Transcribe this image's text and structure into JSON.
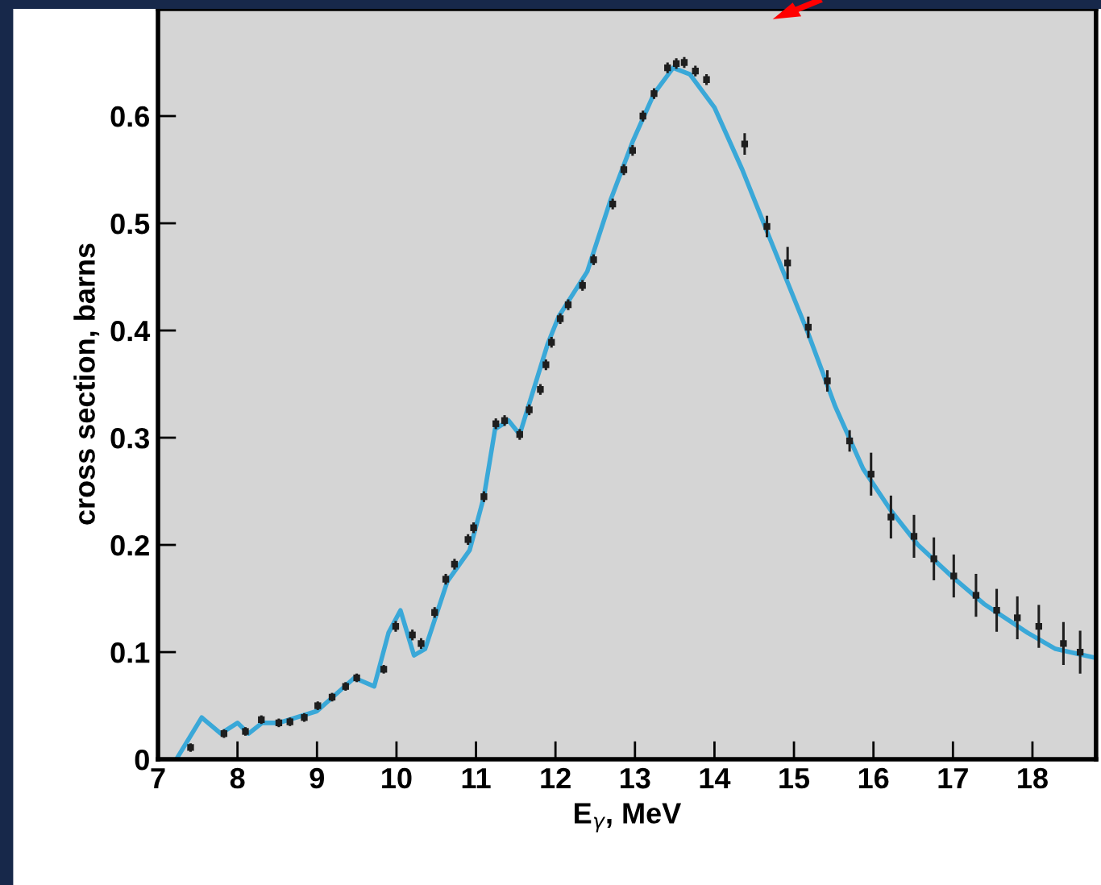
{
  "chart_data": {
    "type": "scatter",
    "xlabel": "E$_{γ}$, MeV",
    "ylabel": "cross section, barns",
    "xlim": [
      7,
      18.8
    ],
    "ylim": [
      0,
      0.7
    ],
    "xticks": [
      7,
      8,
      9,
      10,
      11,
      12,
      13,
      14,
      15,
      16,
      17,
      18
    ],
    "yticks": [
      0,
      0.1,
      0.2,
      0.3,
      0.4,
      0.5,
      0.6
    ],
    "grid": false,
    "legend": false,
    "series": [
      {
        "type": "line",
        "color": "#3aa8d8",
        "line_style": "solid",
        "marker": "none",
        "x": [
          7.23,
          7.55,
          7.79,
          8.0,
          8.14,
          8.31,
          8.52,
          9.0,
          9.47,
          9.72,
          9.9,
          10.05,
          10.22,
          10.36,
          10.64,
          10.92,
          11.1,
          11.24,
          11.41,
          11.55,
          11.9,
          12.04,
          12.4,
          12.69,
          12.97,
          13.24,
          13.48,
          13.69,
          14.0,
          14.35,
          14.69,
          15.18,
          15.52,
          15.87,
          16.22,
          16.56,
          16.98,
          17.39,
          17.94,
          18.29,
          18.77
        ],
        "values": [
          0,
          0.039,
          0.024,
          0.034,
          0.024,
          0.034,
          0.034,
          0.045,
          0.076,
          0.068,
          0.118,
          0.139,
          0.097,
          0.103,
          0.166,
          0.195,
          0.245,
          0.308,
          0.316,
          0.303,
          0.387,
          0.413,
          0.455,
          0.521,
          0.576,
          0.621,
          0.645,
          0.639,
          0.608,
          0.55,
          0.487,
          0.397,
          0.329,
          0.271,
          0.232,
          0.2,
          0.171,
          0.145,
          0.118,
          0.103,
          0.095
        ]
      },
      {
        "color": "#1e1e1e",
        "marker": "square",
        "x": [
          7.41,
          7.83,
          8.1,
          8.3,
          8.52,
          8.66,
          8.84,
          9.01,
          9.19,
          9.36,
          9.5,
          9.84,
          9.99,
          10.2,
          10.31,
          10.48,
          10.62,
          10.73,
          10.9,
          10.97,
          11.1,
          11.25,
          11.36,
          11.55,
          11.67,
          11.81,
          11.88,
          11.95,
          12.06,
          12.16,
          12.34,
          12.48,
          12.72,
          12.86,
          12.97,
          13.1,
          13.24,
          13.41,
          13.52,
          13.62,
          13.76,
          13.9,
          14.38,
          14.66,
          14.92,
          15.18,
          15.42,
          15.7,
          15.97,
          16.22,
          16.51,
          16.76,
          17.01,
          17.29,
          17.55,
          17.81,
          18.08,
          18.39,
          18.6
        ],
        "values": [
          0.011,
          0.024,
          0.026,
          0.037,
          0.034,
          0.035,
          0.039,
          0.05,
          0.058,
          0.068,
          0.076,
          0.084,
          0.124,
          0.116,
          0.108,
          0.137,
          0.168,
          0.182,
          0.205,
          0.216,
          0.245,
          0.313,
          0.316,
          0.303,
          0.326,
          0.345,
          0.368,
          0.389,
          0.411,
          0.424,
          0.442,
          0.466,
          0.518,
          0.55,
          0.568,
          0.6,
          0.621,
          0.645,
          0.649,
          0.65,
          0.642,
          0.634,
          0.574,
          0.497,
          0.463,
          0.403,
          0.353,
          0.297,
          0.266,
          0.226,
          0.208,
          0.187,
          0.171,
          0.153,
          0.139,
          0.132,
          0.124,
          0.108,
          0.1
        ],
        "errors": [
          0.004,
          0.004,
          0.004,
          0.004,
          0.004,
          0.004,
          0.004,
          0.004,
          0.004,
          0.004,
          0.004,
          0.004,
          0.005,
          0.005,
          0.005,
          0.005,
          0.005,
          0.005,
          0.005,
          0.005,
          0.005,
          0.005,
          0.005,
          0.005,
          0.005,
          0.005,
          0.005,
          0.005,
          0.005,
          0.005,
          0.005,
          0.005,
          0.005,
          0.005,
          0.005,
          0.005,
          0.005,
          0.005,
          0.005,
          0.005,
          0.005,
          0.005,
          0.01,
          0.01,
          0.015,
          0.01,
          0.01,
          0.01,
          0.02,
          0.02,
          0.02,
          0.02,
          0.02,
          0.02,
          0.02,
          0.02,
          0.02,
          0.02,
          0.02
        ]
      }
    ]
  }
}
